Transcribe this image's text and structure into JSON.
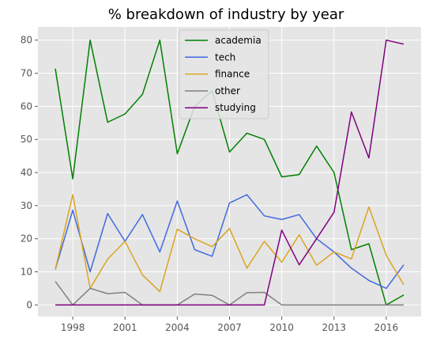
{
  "chart_data": {
    "type": "line",
    "title": "% breakdown of industry by year",
    "xlabel": "",
    "ylabel": "",
    "x": [
      1997,
      1998,
      1999,
      2000,
      2001,
      2002,
      2003,
      2004,
      2005,
      2006,
      2007,
      2008,
      2009,
      2010,
      2011,
      2012,
      2013,
      2014,
      2015,
      2016,
      2017
    ],
    "xlim": [
      1996.0,
      2018.0
    ],
    "ylim": [
      -3.5,
      84
    ],
    "x_ticks": [
      1998,
      2001,
      2004,
      2007,
      2010,
      2013,
      2016
    ],
    "y_ticks": [
      0,
      10,
      20,
      30,
      40,
      50,
      60,
      70,
      80
    ],
    "grid": true,
    "legend_position": "upper-center",
    "series": [
      {
        "name": "academia",
        "color": "#008000",
        "values": [
          71.4,
          38.1,
          80.0,
          55.2,
          57.7,
          63.6,
          80.0,
          45.7,
          60.0,
          64.7,
          46.2,
          51.9,
          50.0,
          38.7,
          39.4,
          48.0,
          40.0,
          16.7,
          18.5,
          0.0,
          3.0
        ]
      },
      {
        "name": "tech",
        "color": "#4169e1",
        "values": [
          10.7,
          28.6,
          10.0,
          27.6,
          19.2,
          27.3,
          16.0,
          31.4,
          16.7,
          14.7,
          30.8,
          33.3,
          26.9,
          25.8,
          27.3,
          20.0,
          16.0,
          11.1,
          7.4,
          5.0,
          12.1
        ]
      },
      {
        "name": "finance",
        "color": "#daa520",
        "values": [
          10.7,
          33.3,
          5.0,
          13.8,
          19.2,
          9.1,
          4.0,
          22.9,
          20.0,
          17.6,
          23.1,
          11.1,
          19.2,
          12.9,
          21.2,
          12.0,
          16.0,
          13.9,
          29.6,
          15.0,
          6.1
        ]
      },
      {
        "name": "other",
        "color": "#808080",
        "values": [
          7.1,
          0.0,
          5.0,
          3.4,
          3.8,
          0.0,
          0.0,
          0.0,
          3.3,
          2.9,
          0.0,
          3.7,
          3.8,
          0.0,
          0.0,
          0.0,
          0.0,
          0.0,
          0.0,
          0.0,
          0.0
        ]
      },
      {
        "name": "studying",
        "color": "#800080",
        "values": [
          0.0,
          0.0,
          0.0,
          0.0,
          0.0,
          0.0,
          0.0,
          0.0,
          0.0,
          0.0,
          0.0,
          0.0,
          0.0,
          22.6,
          12.1,
          20.0,
          28.0,
          58.3,
          44.4,
          80.0,
          78.8
        ]
      }
    ]
  }
}
